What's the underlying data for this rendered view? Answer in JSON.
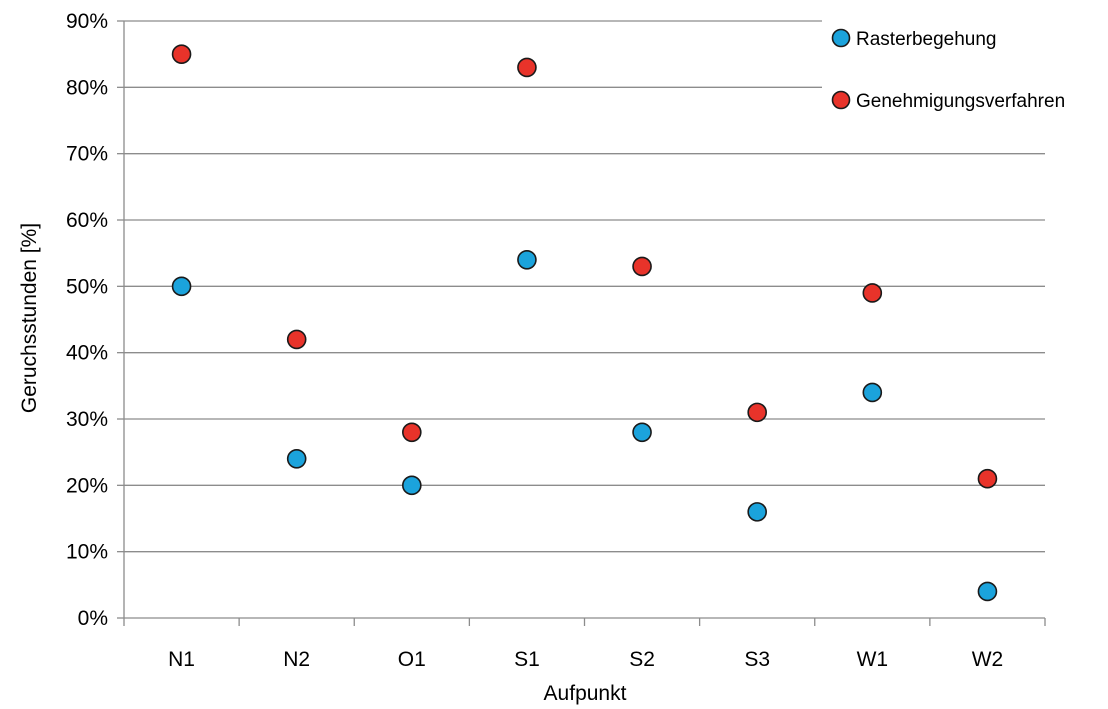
{
  "chart_data": {
    "type": "scatter",
    "categories": [
      "N1",
      "N2",
      "O1",
      "S1",
      "S2",
      "S3",
      "W1",
      "W2"
    ],
    "series": [
      {
        "name": "Rasterbegehung",
        "color": "#1ba3dc",
        "values": [
          50,
          24,
          20,
          54,
          28,
          16,
          34,
          4
        ]
      },
      {
        "name": "Genehmigungsverfahren",
        "color": "#e8332a",
        "values": [
          85,
          42,
          28,
          83,
          53,
          31,
          49,
          21
        ]
      }
    ],
    "title": "",
    "xlabel": "Aufpunkt",
    "ylabel": "Geruchsstunden [%]",
    "ylim": [
      0,
      90
    ],
    "yticks": [
      0,
      10,
      20,
      30,
      40,
      50,
      60,
      70,
      80,
      90
    ],
    "ytick_labels": [
      "0%",
      "10%",
      "20%",
      "30%",
      "40%",
      "50%",
      "60%",
      "70%",
      "80%",
      "90%"
    ],
    "y_unit_suffix": "%",
    "grid": true,
    "legend_position": "top-right"
  }
}
